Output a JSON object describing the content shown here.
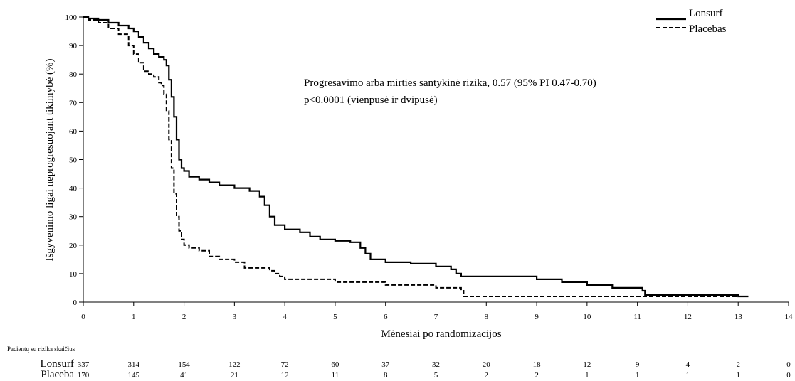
{
  "chart_data": {
    "type": "line",
    "xlabel": "Mėnesiai po randomizacijos",
    "ylabel": "Išgyvenimo ligai neprogresuojant tikimybė (%)",
    "xlim": [
      0,
      14
    ],
    "ylim": [
      0,
      100
    ],
    "x_ticks": [
      "0",
      "1",
      "2",
      "3",
      "4",
      "5",
      "6",
      "7",
      "8",
      "9",
      "10",
      "11",
      "12",
      "13",
      "14"
    ],
    "y_ticks": [
      "0",
      "10",
      "20",
      "30",
      "40",
      "50",
      "60",
      "70",
      "80",
      "90",
      "100"
    ],
    "grid": false,
    "legend_position": "top-right",
    "legend": [
      "Lonsurf",
      "Placebas"
    ],
    "annotation": [
      "Progresavimo arba mirties santykinė rizika, 0.57 (95% PI 0.47-0.70)",
      "p<0.0001 (vienpusė ir dvipusė)"
    ],
    "series": [
      {
        "name": "Lonsurf",
        "style": "solid",
        "x": [
          0,
          0.1,
          0.3,
          0.5,
          0.7,
          0.9,
          1.0,
          1.1,
          1.2,
          1.3,
          1.4,
          1.5,
          1.6,
          1.65,
          1.7,
          1.75,
          1.8,
          1.85,
          1.9,
          1.95,
          2.0,
          2.1,
          2.3,
          2.5,
          2.7,
          3.0,
          3.3,
          3.5,
          3.6,
          3.7,
          3.8,
          4.0,
          4.3,
          4.5,
          4.7,
          5.0,
          5.3,
          5.5,
          5.6,
          5.7,
          6.0,
          6.5,
          7.0,
          7.3,
          7.4,
          7.5,
          8.0,
          8.5,
          9.0,
          9.5,
          10.0,
          10.5,
          11.0,
          11.1,
          11.15,
          11.5,
          12.0,
          12.5,
          13.0,
          13.2
        ],
        "y": [
          100,
          99.5,
          99,
          98,
          97,
          96,
          95,
          93,
          91,
          89,
          87,
          86,
          85,
          83,
          78,
          72,
          65,
          57,
          50,
          47,
          46,
          44,
          43,
          42,
          41,
          40,
          39,
          37,
          34,
          30,
          27,
          25.5,
          24.5,
          23,
          22,
          21.5,
          21,
          19,
          17,
          15,
          14,
          13.5,
          12.5,
          11.5,
          10,
          9,
          9,
          9,
          8,
          7,
          6,
          5,
          5,
          4,
          2.5,
          2.5,
          2.5,
          2.5,
          2,
          2
        ]
      },
      {
        "name": "Placebas",
        "style": "dashed",
        "x": [
          0,
          0.1,
          0.3,
          0.5,
          0.7,
          0.9,
          1.0,
          1.1,
          1.2,
          1.3,
          1.4,
          1.5,
          1.55,
          1.6,
          1.65,
          1.7,
          1.75,
          1.8,
          1.85,
          1.9,
          1.95,
          2.0,
          2.1,
          2.3,
          2.5,
          2.7,
          3.0,
          3.2,
          3.5,
          3.7,
          3.8,
          3.9,
          4.0,
          4.5,
          5.0,
          5.5,
          6.0,
          6.5,
          7.0,
          7.3,
          7.4,
          7.5,
          7.55,
          8.0,
          9.0,
          10.0,
          11.0,
          12.0,
          13.0,
          13.2
        ],
        "y": [
          100,
          99,
          98,
          96,
          94,
          90,
          87,
          84,
          81,
          80,
          79,
          77,
          76,
          73,
          67,
          57,
          47,
          38,
          30,
          25,
          22,
          20,
          19,
          18,
          16,
          15,
          14,
          12,
          12,
          11,
          10,
          9,
          8,
          8,
          7,
          7,
          6,
          6,
          5,
          5,
          5,
          4,
          2,
          2,
          2,
          2,
          2,
          2,
          2,
          2
        ]
      }
    ],
    "risk_table": {
      "title": "Pacientų su rizika skaičius",
      "time_points": [
        0,
        1,
        2,
        3,
        4,
        5,
        6,
        7,
        8,
        9,
        10,
        11,
        12,
        13,
        14
      ],
      "rows": [
        {
          "label": "Lonsurf",
          "values": [
            "337",
            "314",
            "154",
            "122",
            "72",
            "60",
            "37",
            "32",
            "20",
            "18",
            "12",
            "9",
            "4",
            "2",
            "0"
          ]
        },
        {
          "label": "Placeba",
          "values": [
            "170",
            "145",
            "41",
            "21",
            "12",
            "11",
            "8",
            "5",
            "2",
            "2",
            "1",
            "1",
            "1",
            "1",
            "0"
          ]
        }
      ]
    }
  }
}
